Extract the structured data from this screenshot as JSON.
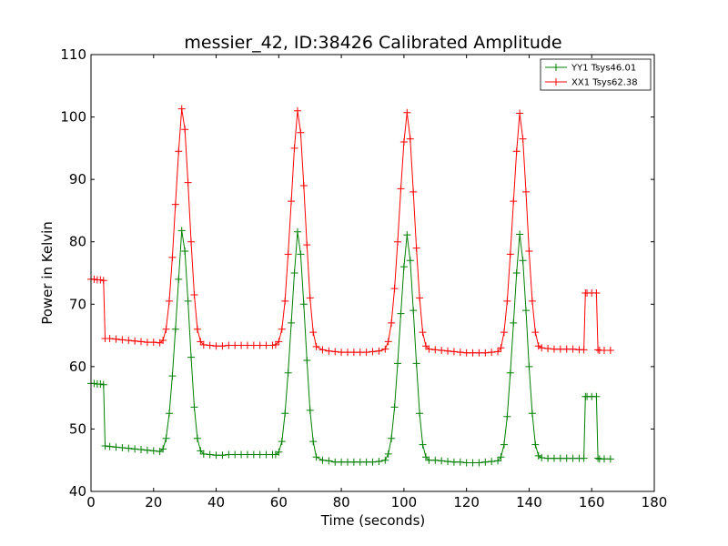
{
  "chart_data": {
    "type": "line",
    "title": "messier_42, ID:38426 Calibrated Amplitude",
    "xlabel": "Time (seconds)",
    "ylabel": "Power in Kelvin",
    "xlim": [
      0,
      180
    ],
    "ylim": [
      40,
      110
    ],
    "xticks": [
      0,
      20,
      40,
      60,
      80,
      100,
      120,
      140,
      160,
      180
    ],
    "yticks": [
      40,
      50,
      60,
      70,
      80,
      90,
      100,
      110
    ],
    "grid": false,
    "legend_position": "top-right",
    "series": [
      {
        "name": "YY1 Tsys46.01",
        "color": "#008000",
        "marker": "plus",
        "x": [
          0,
          1,
          2,
          3,
          4,
          4.5,
          6,
          8,
          10,
          12,
          14,
          16,
          18,
          20,
          22,
          23,
          24,
          25,
          26,
          27,
          28,
          29,
          30,
          31,
          32,
          33,
          34,
          35,
          36,
          38,
          40,
          42,
          44,
          46,
          48,
          50,
          52,
          54,
          56,
          58,
          59,
          60,
          61,
          62,
          63,
          64,
          65,
          66,
          67,
          68,
          69,
          70,
          71,
          72,
          74,
          76,
          78,
          80,
          82,
          84,
          86,
          88,
          90,
          92,
          94,
          95,
          96,
          97,
          98,
          99,
          100,
          101,
          102,
          103,
          104,
          105,
          106,
          107,
          108,
          110,
          112,
          114,
          116,
          118,
          120,
          122,
          124,
          126,
          128,
          130,
          131,
          132,
          133,
          134,
          135,
          136,
          137,
          138,
          139,
          140,
          141,
          142,
          143,
          144,
          146,
          148,
          150,
          152,
          154,
          156,
          157.5,
          158,
          158.5,
          160,
          161.5,
          162,
          162.5,
          164,
          166
        ],
        "y": [
          57.3,
          57.3,
          57.2,
          57.2,
          57.1,
          47.3,
          47.2,
          47.1,
          47.0,
          46.9,
          46.8,
          46.7,
          46.6,
          46.5,
          46.4,
          46.8,
          48.5,
          52.5,
          58.5,
          66.0,
          74.0,
          81.8,
          78.5,
          70.5,
          61.5,
          53.5,
          48.5,
          46.5,
          46.0,
          45.9,
          45.8,
          45.8,
          45.9,
          45.9,
          45.9,
          45.9,
          45.9,
          45.9,
          45.9,
          45.9,
          45.9,
          46.3,
          48.0,
          52.5,
          59.0,
          67.0,
          75.0,
          81.6,
          78.0,
          70.0,
          61.0,
          53.0,
          48.0,
          45.5,
          45.0,
          44.9,
          44.7,
          44.7,
          44.7,
          44.7,
          44.7,
          44.7,
          44.7,
          44.8,
          45.0,
          46.0,
          48.5,
          53.5,
          60.5,
          68.5,
          76.0,
          81.1,
          77.0,
          69.0,
          60.5,
          52.5,
          47.5,
          45.5,
          45.0,
          45.0,
          44.9,
          44.8,
          44.7,
          44.7,
          44.6,
          44.6,
          44.6,
          44.7,
          44.8,
          44.9,
          45.5,
          47.5,
          52.0,
          59.0,
          67.0,
          75.0,
          81.2,
          77.0,
          69.0,
          60.0,
          52.5,
          47.5,
          45.7,
          45.4,
          45.3,
          45.3,
          45.3,
          45.3,
          45.3,
          45.3,
          45.3,
          55.2,
          55.2,
          55.2,
          55.2,
          45.3,
          45.2,
          45.2,
          45.2
        ]
      },
      {
        "name": "XX1 Tsys62.38",
        "color": "#ff0000",
        "marker": "plus",
        "x": [
          0,
          1,
          2,
          3,
          4,
          4.5,
          6,
          8,
          10,
          12,
          14,
          16,
          18,
          20,
          22,
          23,
          24,
          25,
          26,
          27,
          28,
          29,
          30,
          31,
          32,
          33,
          34,
          35,
          36,
          38,
          40,
          42,
          44,
          46,
          48,
          50,
          52,
          54,
          56,
          58,
          59,
          60,
          61,
          62,
          63,
          64,
          65,
          66,
          67,
          68,
          69,
          70,
          71,
          72,
          74,
          76,
          78,
          80,
          82,
          84,
          86,
          88,
          90,
          92,
          94,
          95,
          96,
          97,
          98,
          99,
          100,
          101,
          102,
          103,
          104,
          105,
          106,
          107,
          108,
          110,
          112,
          114,
          116,
          118,
          120,
          122,
          124,
          126,
          128,
          130,
          131,
          132,
          133,
          134,
          135,
          136,
          137,
          138,
          139,
          140,
          141,
          142,
          143,
          144,
          146,
          148,
          150,
          152,
          154,
          156,
          157.5,
          158,
          158.5,
          160,
          161.5,
          162,
          162.5,
          164,
          166
        ],
        "y": [
          74.0,
          74.0,
          73.9,
          73.9,
          73.8,
          64.5,
          64.5,
          64.4,
          64.3,
          64.2,
          64.1,
          64.0,
          63.9,
          63.9,
          63.8,
          64.2,
          66.0,
          70.5,
          77.5,
          86.0,
          94.5,
          101.3,
          98.0,
          89.5,
          80.0,
          71.5,
          66.0,
          64.0,
          63.5,
          63.4,
          63.3,
          63.3,
          63.4,
          63.4,
          63.4,
          63.4,
          63.4,
          63.4,
          63.4,
          63.4,
          63.5,
          64.0,
          66.0,
          70.5,
          78.0,
          86.5,
          95.0,
          101.0,
          97.5,
          89.0,
          79.5,
          71.0,
          65.5,
          63.2,
          62.7,
          62.5,
          62.4,
          62.3,
          62.3,
          62.3,
          62.3,
          62.3,
          62.4,
          62.5,
          62.8,
          64.0,
          67.0,
          72.5,
          80.0,
          88.5,
          96.0,
          100.7,
          96.5,
          88.0,
          79.0,
          71.0,
          65.5,
          63.3,
          62.8,
          62.7,
          62.6,
          62.5,
          62.4,
          62.3,
          62.2,
          62.2,
          62.2,
          62.2,
          62.3,
          62.4,
          63.0,
          65.5,
          70.5,
          78.0,
          86.5,
          94.5,
          100.6,
          96.5,
          88.0,
          78.5,
          70.5,
          65.5,
          63.3,
          63.0,
          62.9,
          62.8,
          62.8,
          62.8,
          62.8,
          62.7,
          62.7,
          71.8,
          71.8,
          71.8,
          71.8,
          62.7,
          62.6,
          62.6,
          62.6
        ]
      }
    ]
  }
}
